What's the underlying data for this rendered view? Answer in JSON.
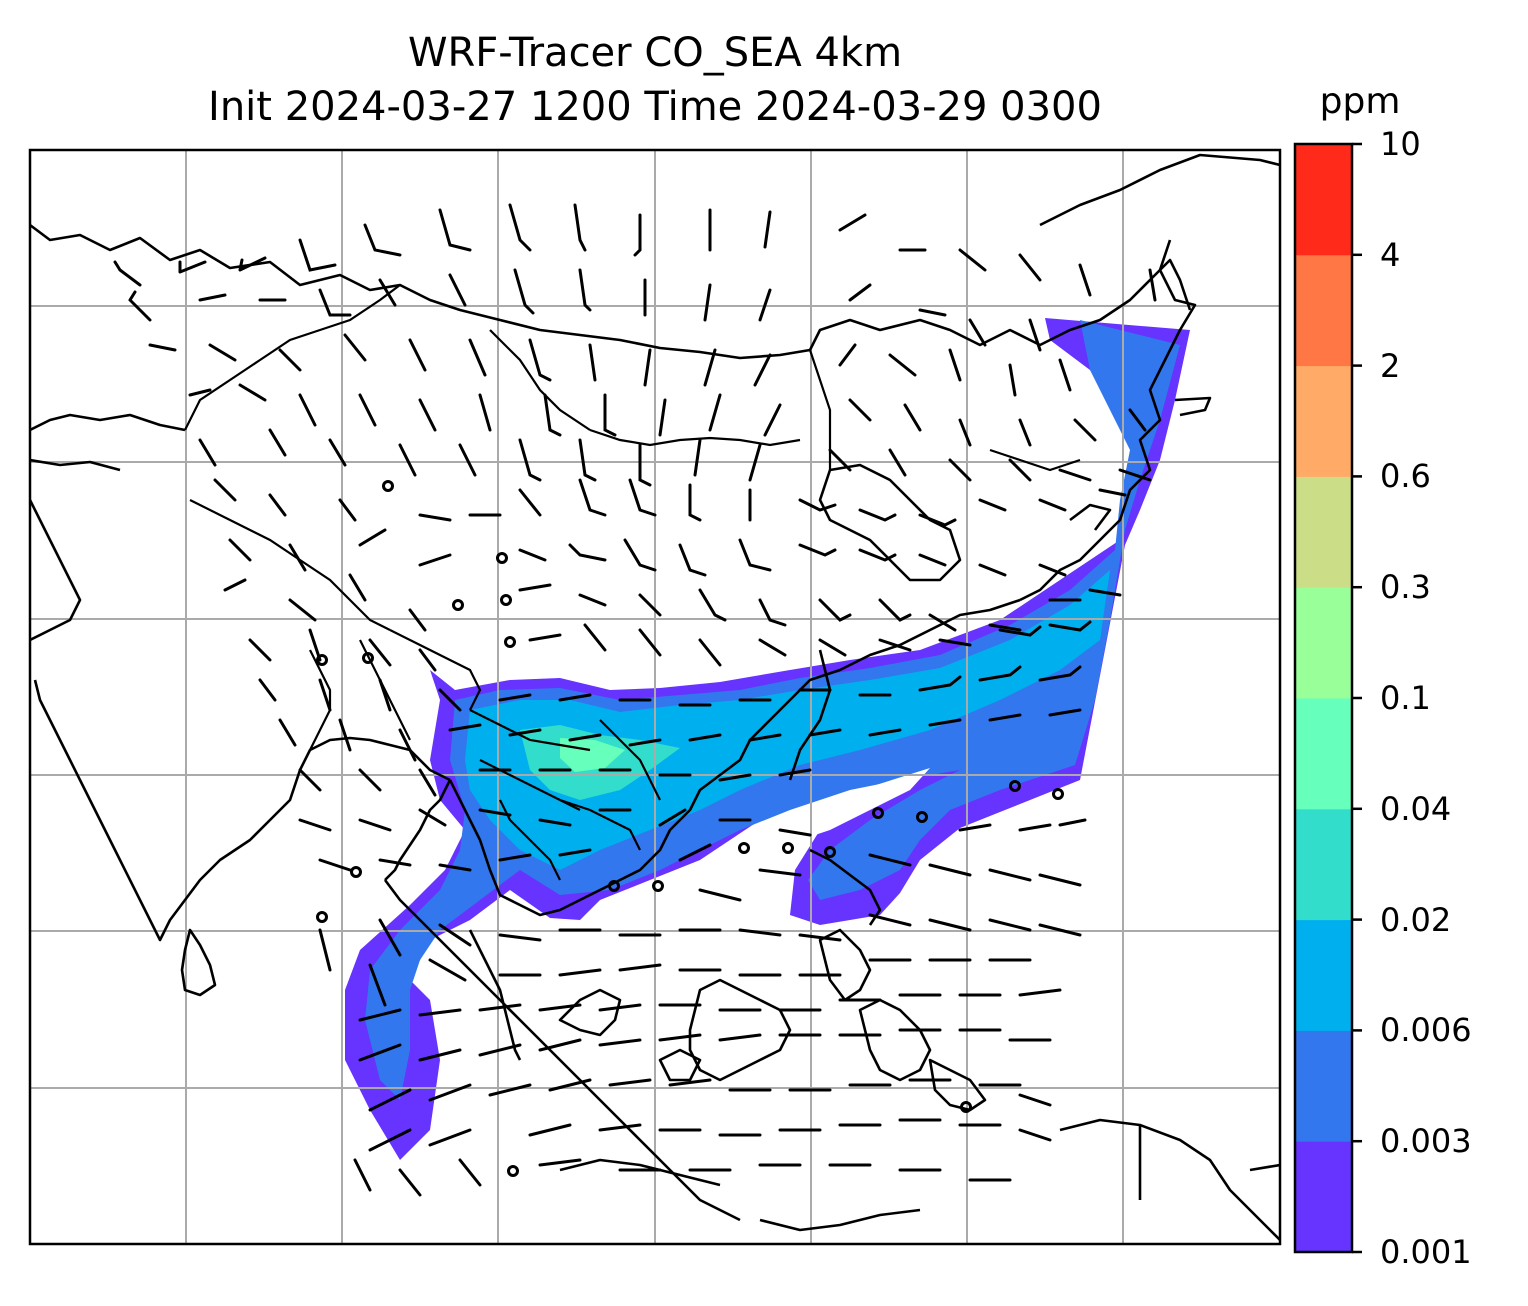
{
  "title": {
    "line1": "WRF-Tracer CO_SEA 4km",
    "line2": "Init 2024-03-27 1200 Time 2024-03-29 0300"
  },
  "colorbar": {
    "unit": "ppm",
    "levels": [
      "0.001",
      "0.003",
      "0.006",
      "0.02",
      "0.04",
      "0.1",
      "0.3",
      "0.6",
      "2",
      "4",
      "10"
    ],
    "colors": [
      "#6633ff",
      "#3377ee",
      "#00b0ee",
      "#33ddcc",
      "#66ffbb",
      "#99ff99",
      "#ccdd88",
      "#ffaa66",
      "#ff7744",
      "#ff2a1a"
    ]
  },
  "map": {
    "field": "CO tracer concentration",
    "overlays": [
      "coastlines",
      "country-borders",
      "lat-lon-gridlines",
      "wind-barbs"
    ],
    "land_color": "#ffffff",
    "gridline_color": "#aaaaaa"
  }
}
